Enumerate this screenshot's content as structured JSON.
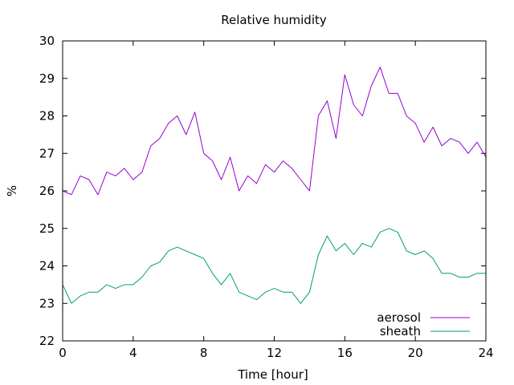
{
  "chart_data": {
    "type": "line",
    "title": "Relative humidity",
    "xlabel": "Time [hour]",
    "ylabel": "%",
    "xlim": [
      0,
      24
    ],
    "ylim": [
      22,
      30
    ],
    "xticks": [
      0,
      4,
      8,
      12,
      16,
      20,
      24
    ],
    "yticks": [
      22,
      23,
      24,
      25,
      26,
      27,
      28,
      29,
      30
    ],
    "grid": false,
    "legend_position": "bottom-right",
    "x": [
      0,
      0.5,
      1,
      1.5,
      2,
      2.5,
      3,
      3.5,
      4,
      4.5,
      5,
      5.5,
      6,
      6.5,
      7,
      7.5,
      8,
      8.5,
      9,
      9.5,
      10,
      10.5,
      11,
      11.5,
      12,
      12.5,
      13,
      13.5,
      14,
      14.5,
      15,
      15.5,
      16,
      16.5,
      17,
      17.5,
      18,
      18.5,
      19,
      19.5,
      20,
      20.5,
      21,
      21.5,
      22,
      22.5,
      23,
      23.5,
      24
    ],
    "series": [
      {
        "name": "aerosol",
        "color": "#9400d3",
        "values": [
          26.0,
          25.9,
          26.4,
          26.3,
          25.9,
          26.5,
          26.4,
          26.6,
          26.3,
          26.5,
          27.2,
          27.4,
          27.8,
          28.0,
          27.5,
          28.1,
          27.0,
          26.8,
          26.3,
          26.9,
          26.0,
          26.4,
          26.2,
          26.7,
          26.5,
          26.8,
          26.6,
          26.3,
          26.0,
          28.0,
          28.4,
          27.4,
          29.1,
          28.3,
          28.0,
          28.8,
          29.3,
          28.6,
          28.6,
          28.0,
          27.8,
          27.3,
          27.7,
          27.2,
          27.4,
          27.3,
          27.0,
          27.3,
          26.9
        ]
      },
      {
        "name": "sheath",
        "color": "#009e73",
        "values": [
          23.5,
          23.0,
          23.2,
          23.3,
          23.3,
          23.5,
          23.4,
          23.5,
          23.5,
          23.7,
          24.0,
          24.1,
          24.4,
          24.5,
          24.4,
          24.3,
          24.2,
          23.8,
          23.5,
          23.8,
          23.3,
          23.2,
          23.1,
          23.3,
          23.4,
          23.3,
          23.3,
          23.0,
          23.3,
          24.3,
          24.8,
          24.4,
          24.6,
          24.3,
          24.6,
          24.5,
          24.9,
          25.0,
          24.9,
          24.4,
          24.3,
          24.4,
          24.2,
          23.8,
          23.8,
          23.7,
          23.7,
          23.8,
          23.8
        ]
      }
    ]
  }
}
